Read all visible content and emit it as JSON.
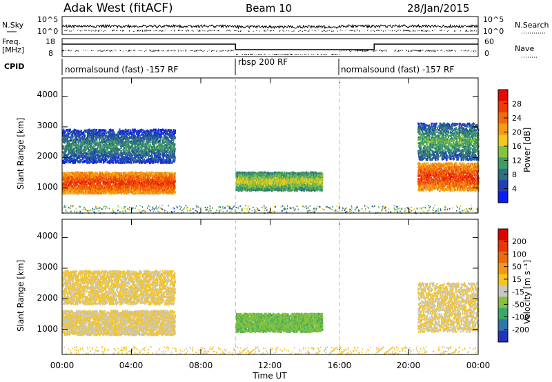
{
  "header": {
    "radar": "Adak West (fitACF)",
    "beam": "Beam 10",
    "date": "28/Jan/2015"
  },
  "panels": {
    "nsky_label": "N.Sky",
    "nsky_ticks": [
      "10^5",
      "10^0"
    ],
    "nsearch_label": "N.Search",
    "nsearch_ticks": [
      "10^5",
      "10^0"
    ],
    "freq_label": "Freq.",
    "freq_unit": "[MHz]",
    "freq_ticks": [
      "18",
      "8"
    ],
    "nave_label": "Nave",
    "nave_ticks": [
      "60",
      "0"
    ],
    "cpid_label": "CPID",
    "cpid_segments": [
      {
        "label": "normalsound (fast) -157 RF",
        "start_h": 0,
        "end_h": 10
      },
      {
        "label": "rbsp 200 RF",
        "start_h": 10,
        "end_h": 16
      },
      {
        "label": "normalsound (fast) -157 RF",
        "start_h": 16,
        "end_h": 24
      }
    ]
  },
  "x_axis": {
    "label": "Time UT",
    "ticks": [
      "00:00",
      "04:00",
      "08:00",
      "12:00",
      "16:00",
      "20:00",
      "00:00"
    ]
  },
  "y_axis": {
    "label": "Slant Range [km]",
    "ticks": [
      "1000",
      "2000",
      "3000",
      "4000"
    ]
  },
  "power_scale": {
    "label": "Power [dB]",
    "ticks": [
      "4",
      "8",
      "12",
      "16",
      "20",
      "24",
      "28"
    ],
    "colors": [
      "#0a1ef0",
      "#2040b8",
      "#2e6e82",
      "#3e9e62",
      "#86c23e",
      "#f2c81e",
      "#f59a12",
      "#f06a0a",
      "#ee3a08",
      "#e40a00"
    ]
  },
  "velocity_scale": {
    "label": "Velocity [m s⁻¹]",
    "ticks": [
      "200",
      "100",
      "50",
      "15",
      "-15",
      "-50",
      "-100",
      "-200"
    ],
    "colors": [
      "#2233bb",
      "#2b78a8",
      "#3aa86a",
      "#86c23e",
      "#c8c8c0",
      "#f6c420",
      "#f39a14",
      "#ee6a0c",
      "#e83606",
      "#e00000"
    ]
  },
  "chart_data": [
    {
      "type": "heatmap",
      "title": "Power",
      "xlabel": "Time UT",
      "ylabel": "Slant Range [km]",
      "xlim": [
        0,
        24
      ],
      "ylim": [
        180,
        4600
      ],
      "colorbar_label": "Power [dB]",
      "colorbar_range": [
        0,
        30
      ],
      "echo_regions": [
        {
          "t_start": 0,
          "t_end": 6.5,
          "range_low": 800,
          "range_high": 1500,
          "value": 26
        },
        {
          "t_start": 0,
          "t_end": 6.5,
          "range_low": 1800,
          "range_high": 2900,
          "value": 10
        },
        {
          "t_start": 10,
          "t_end": 15,
          "range_low": 900,
          "range_high": 1500,
          "value": 16
        },
        {
          "t_start": 20.5,
          "t_end": 24,
          "range_low": 900,
          "range_high": 1800,
          "value": 26
        },
        {
          "t_start": 20.5,
          "t_end": 24,
          "range_low": 1900,
          "range_high": 3100,
          "value": 12
        }
      ]
    },
    {
      "type": "heatmap",
      "title": "Velocity",
      "xlabel": "Time UT",
      "ylabel": "Slant Range [km]",
      "xlim": [
        0,
        24
      ],
      "ylim": [
        180,
        4600
      ],
      "colorbar_label": "Velocity [m s⁻¹]",
      "colorbar_range": [
        -200,
        200
      ],
      "echo_regions": [
        {
          "t_start": 0,
          "t_end": 6.5,
          "range_low": 800,
          "range_high": 1600,
          "value": 0
        },
        {
          "t_start": 0,
          "t_end": 6.5,
          "range_low": 1800,
          "range_high": 2900,
          "value": 5
        },
        {
          "t_start": 10,
          "t_end": 15,
          "range_low": 900,
          "range_high": 1500,
          "value": -70
        },
        {
          "t_start": 20.5,
          "t_end": 24,
          "range_low": 900,
          "range_high": 2500,
          "value": 0
        }
      ]
    }
  ]
}
